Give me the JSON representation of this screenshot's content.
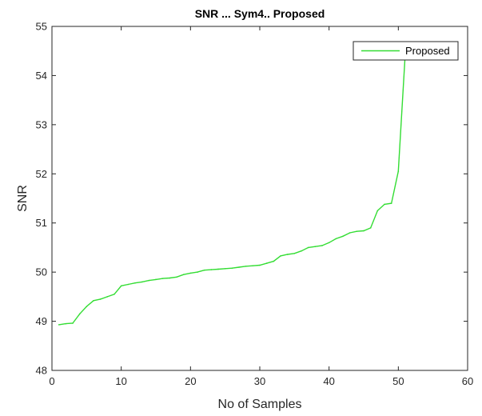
{
  "chart_data": {
    "type": "line",
    "title": "SNR ... Sym4.. Proposed",
    "xlabel": "No of Samples",
    "ylabel": "SNR",
    "xlim": [
      0,
      60
    ],
    "ylim": [
      48,
      55
    ],
    "xticks": [
      0,
      10,
      20,
      30,
      40,
      50,
      60
    ],
    "yticks": [
      48,
      49,
      50,
      51,
      52,
      53,
      54,
      55
    ],
    "grid": false,
    "legend_position": "top-right",
    "series": [
      {
        "name": "Proposed",
        "color": "#33dd33",
        "x": [
          1,
          2,
          3,
          4,
          5,
          6,
          7,
          8,
          9,
          10,
          11,
          12,
          13,
          14,
          15,
          16,
          17,
          18,
          19,
          20,
          21,
          22,
          23,
          24,
          25,
          26,
          27,
          28,
          29,
          30,
          31,
          32,
          33,
          34,
          35,
          36,
          37,
          38,
          39,
          40,
          41,
          42,
          43,
          44,
          45,
          46,
          47,
          48,
          49,
          50,
          51
        ],
        "y": [
          48.93,
          48.95,
          48.96,
          49.15,
          49.3,
          49.42,
          49.45,
          49.5,
          49.55,
          49.72,
          49.75,
          49.78,
          49.8,
          49.83,
          49.85,
          49.87,
          49.88,
          49.9,
          49.95,
          49.98,
          50.0,
          50.04,
          50.05,
          50.06,
          50.07,
          50.08,
          50.1,
          50.12,
          50.13,
          50.14,
          50.18,
          50.22,
          50.33,
          50.36,
          50.38,
          50.43,
          50.5,
          50.52,
          50.54,
          50.6,
          50.68,
          50.73,
          50.8,
          50.83,
          50.84,
          50.9,
          51.25,
          51.38,
          51.4,
          52.05,
          54.45
        ]
      }
    ]
  }
}
